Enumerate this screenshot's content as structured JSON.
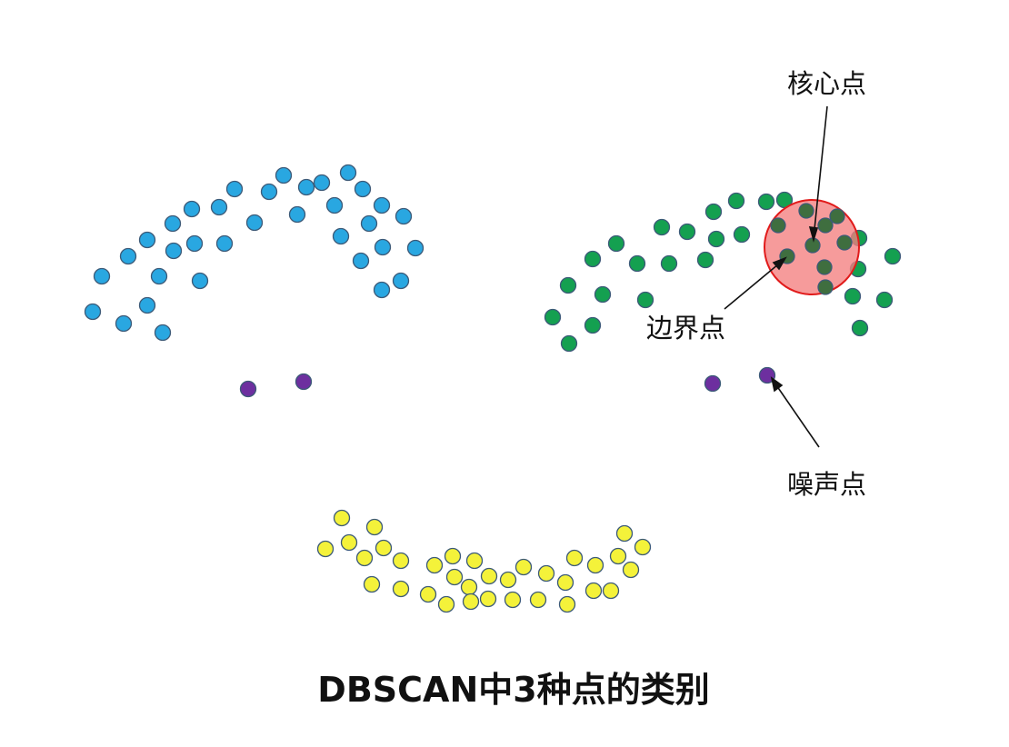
{
  "caption": "DBSCAN中3种点的类别",
  "labels": {
    "core": "核心点",
    "border": "边界点",
    "noise": "噪声点"
  },
  "colors": {
    "cluster_blue": "#29a7e1",
    "cluster_green": "#14a050",
    "cluster_yellow": "#f4f23a",
    "noise": "#6d2f9f",
    "core_highlight": "#f47f7f",
    "core_outline": "#e11b1b",
    "dot_outline": "#3c5a78"
  }
}
